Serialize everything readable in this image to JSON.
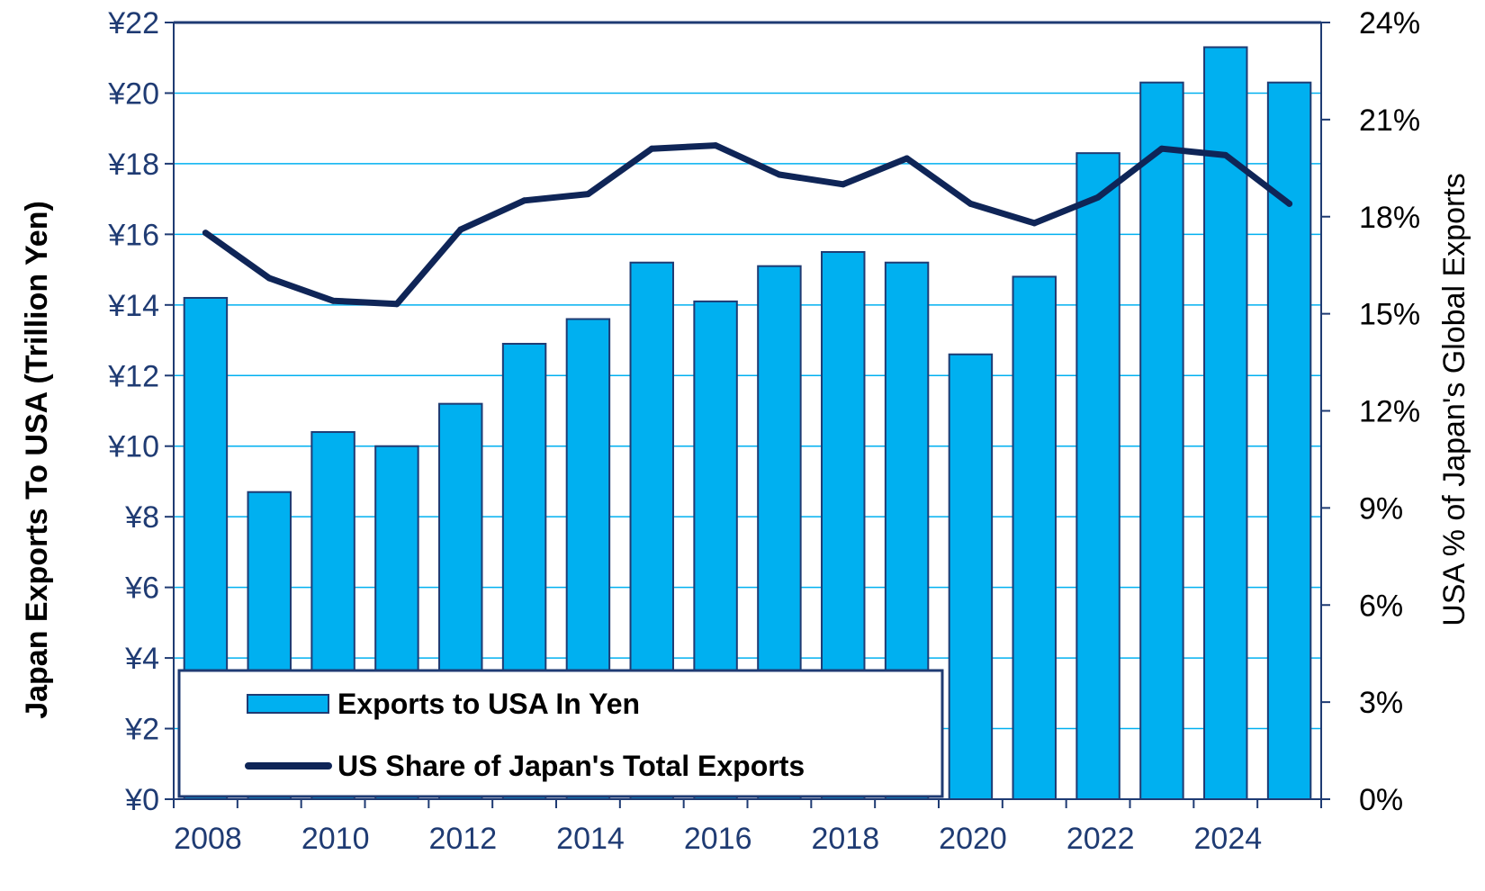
{
  "chart_data": {
    "type": "bar",
    "x": [
      2008,
      2009,
      2010,
      2011,
      2012,
      2013,
      2014,
      2015,
      2016,
      2017,
      2018,
      2019,
      2020,
      2021,
      2022,
      2023,
      2024,
      2025
    ],
    "x_tick_labels": [
      "2008",
      "2010",
      "2012",
      "2014",
      "2016",
      "2018",
      "2020",
      "2022",
      "2024"
    ],
    "series": [
      {
        "name": "Exports to USA In Yen",
        "type": "bar",
        "axis": "left",
        "values": [
          14.2,
          8.7,
          10.4,
          10.0,
          11.2,
          12.9,
          13.6,
          15.2,
          14.1,
          15.1,
          15.5,
          15.2,
          12.6,
          14.8,
          18.3,
          20.3,
          21.3,
          20.3
        ]
      },
      {
        "name": "US Share of Japan's Total Exports",
        "type": "line",
        "axis": "right",
        "values": [
          17.5,
          16.1,
          15.4,
          15.3,
          17.6,
          18.5,
          18.7,
          20.1,
          20.2,
          19.3,
          19.0,
          19.8,
          18.4,
          17.8,
          18.6,
          20.1,
          19.9,
          18.4
        ]
      }
    ],
    "y_left": {
      "label": "Japan Exports To USA (Trillion Yen)",
      "range": [
        0,
        22
      ],
      "tick_labels": [
        "¥0",
        "¥2",
        "¥4",
        "¥6",
        "¥8",
        "¥10",
        "¥12",
        "¥14",
        "¥16",
        "¥18",
        "¥20",
        "¥22"
      ]
    },
    "y_right": {
      "label": "USA % of Japan's Global Exports",
      "range": [
        0,
        24
      ],
      "tick_labels": [
        "0%",
        "3%",
        "6%",
        "9%",
        "12%",
        "15%",
        "18%",
        "21%",
        "24%"
      ]
    },
    "grid": true,
    "legend_position": "bottom-left",
    "colors": {
      "bar_fill": "#00b0f0",
      "bar_stroke": "#1f3b73",
      "line": "#0f2557",
      "grid": "#00b0f0",
      "axis": "#1f3b73"
    }
  }
}
